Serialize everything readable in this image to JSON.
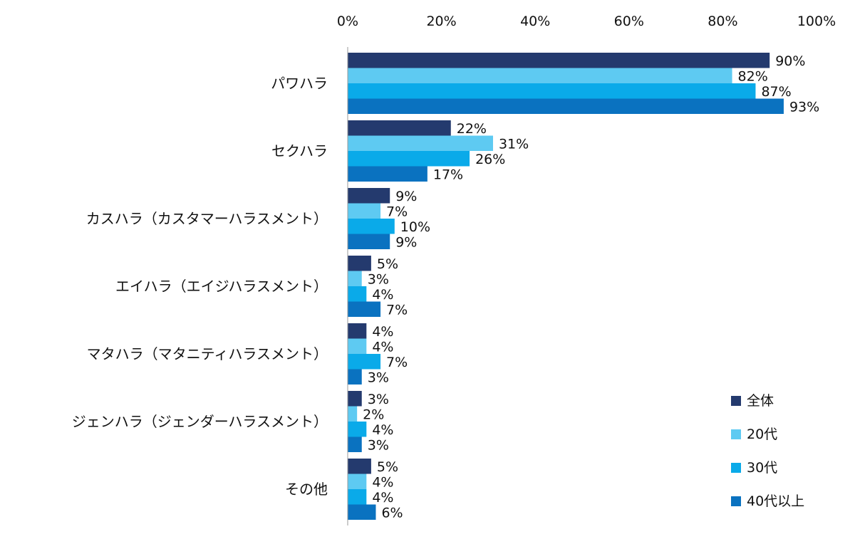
{
  "chart_data": {
    "type": "bar",
    "orientation": "horizontal",
    "categories": [
      "パワハラ",
      "セクハラ",
      "カスハラ（カスタマーハラスメント）",
      "エイハラ（エイジハラスメント）",
      "マタハラ（マタニティハラスメント）",
      "ジェンハラ（ジェンダーハラスメント）",
      "その他"
    ],
    "series": [
      {
        "name": "全体",
        "color": "#243a6e",
        "values": [
          90,
          22,
          9,
          5,
          4,
          3,
          5
        ]
      },
      {
        "name": "20代",
        "color": "#5ecaf2",
        "values": [
          82,
          31,
          7,
          3,
          4,
          2,
          4
        ]
      },
      {
        "name": "30代",
        "color": "#0aaae9",
        "values": [
          87,
          26,
          10,
          4,
          7,
          4,
          4
        ]
      },
      {
        "name": "40代以上",
        "color": "#0a72c0",
        "values": [
          93,
          17,
          9,
          7,
          3,
          3,
          6
        ]
      }
    ],
    "xlim": [
      0,
      100
    ],
    "xticks": [
      "0%",
      "20%",
      "40%",
      "60%",
      "80%",
      "100%"
    ],
    "value_suffix": "%",
    "xaxis_position": "top",
    "grid": false,
    "legend_position": "bottom-right"
  }
}
